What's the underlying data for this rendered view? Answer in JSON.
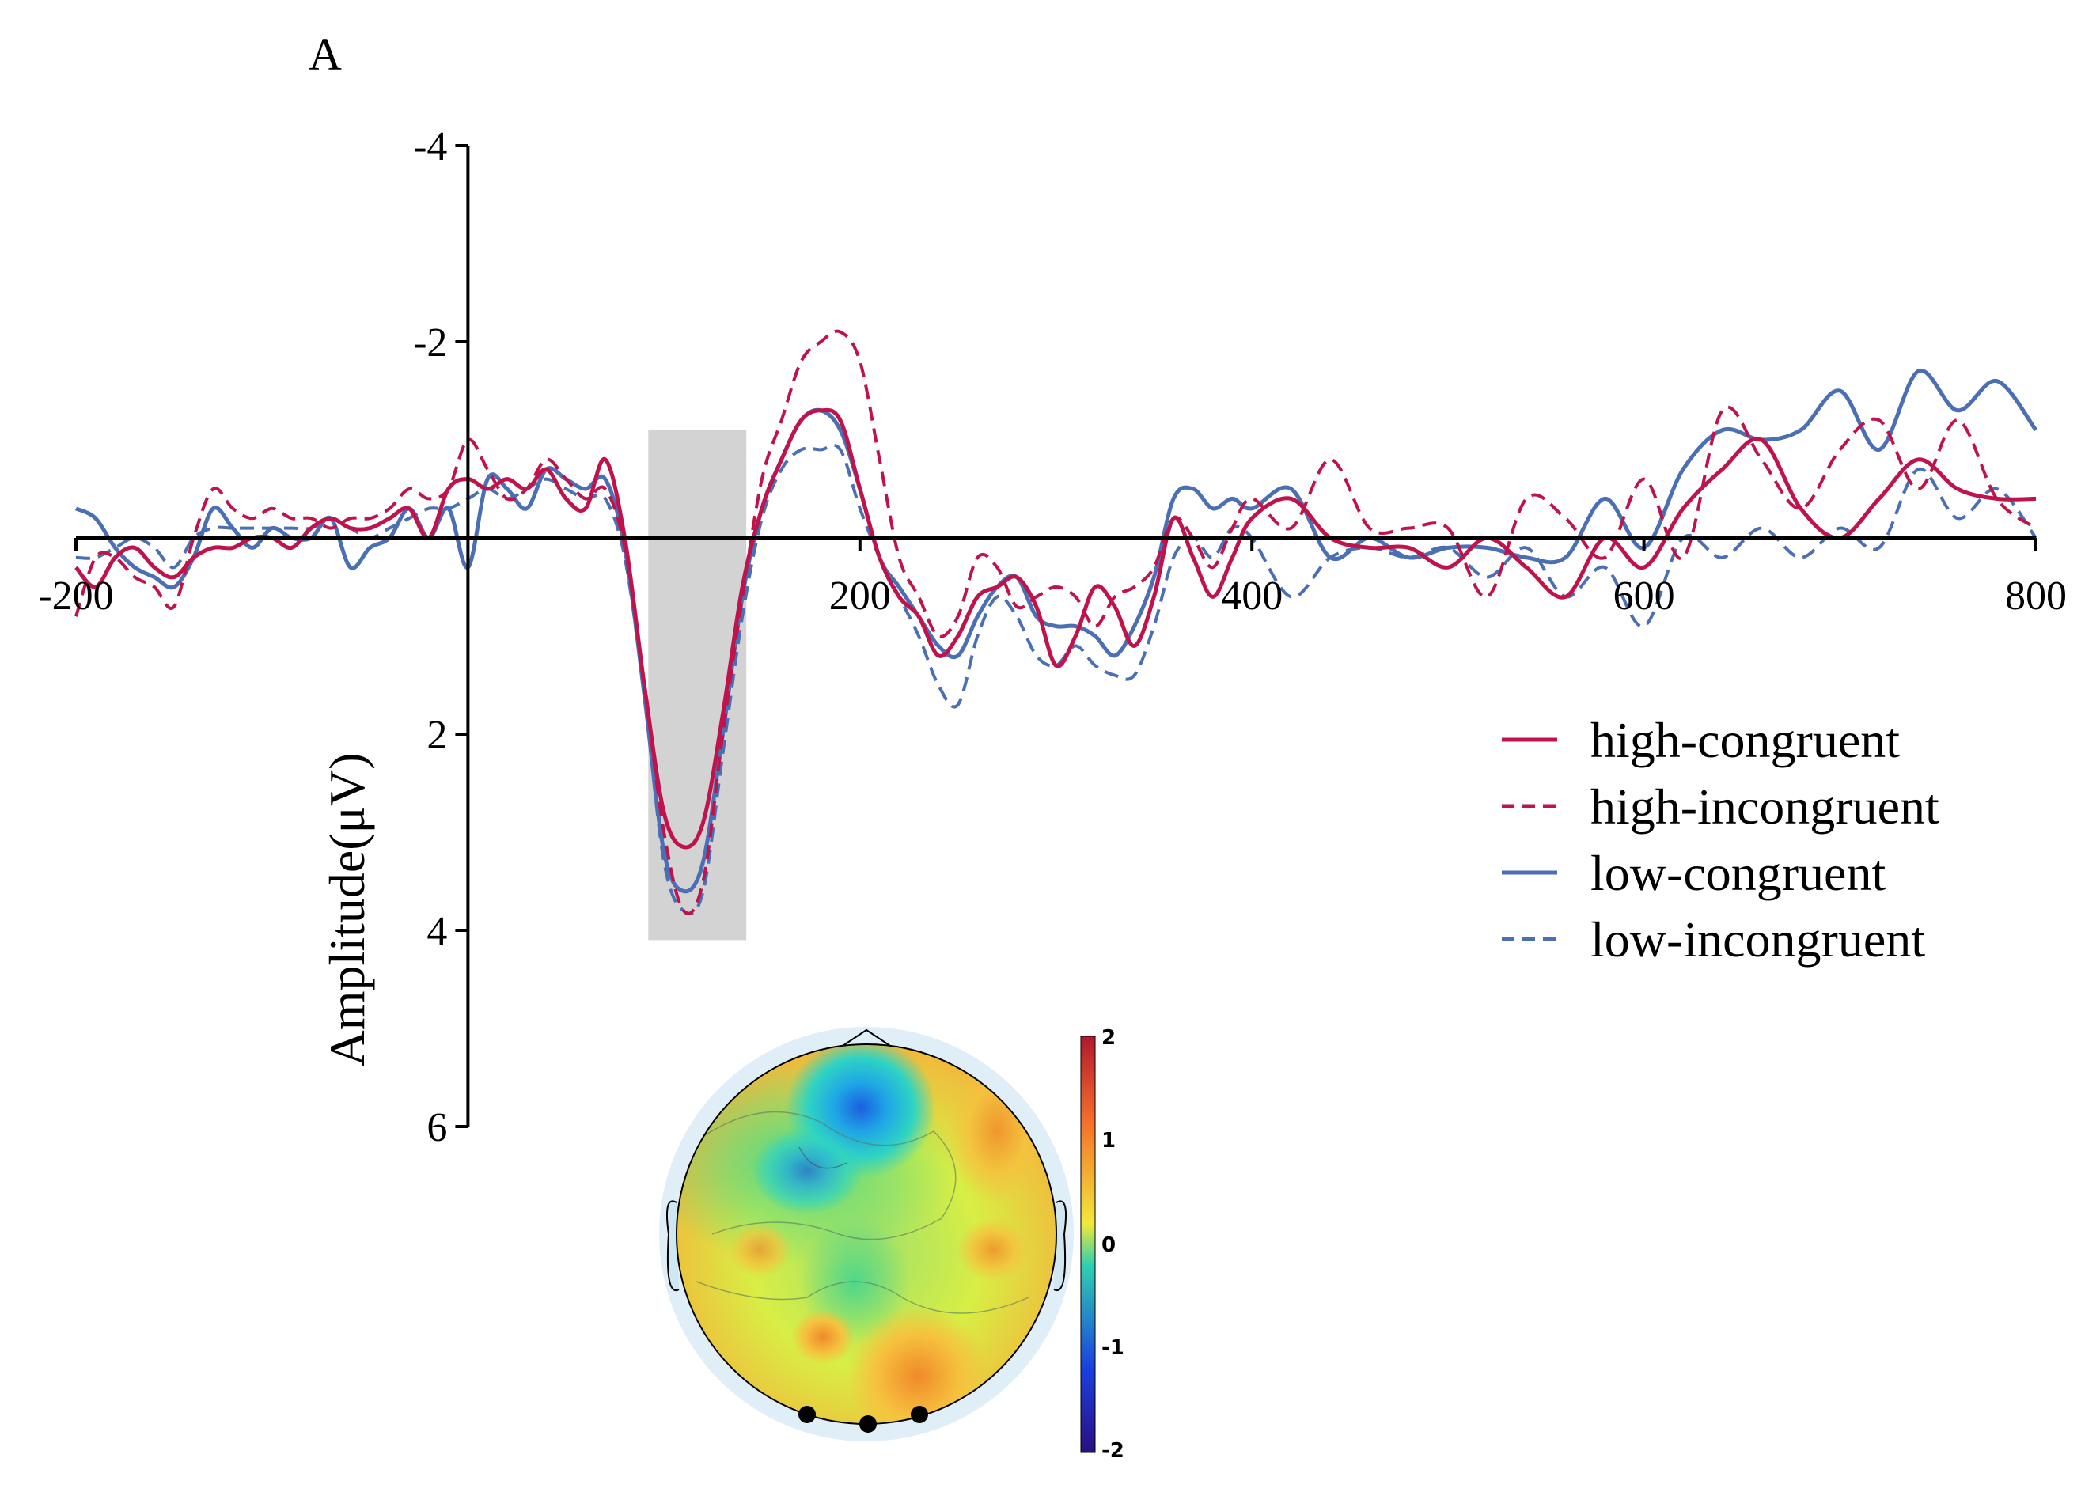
{
  "chart_data": {
    "type": "line",
    "panel_label": "A",
    "title": "",
    "xlabel": "",
    "ylabel": "Amplitude(μV)",
    "xlim": [
      -200,
      800
    ],
    "ylim": [
      -4,
      6
    ],
    "y_inverted": true,
    "grid": false,
    "x_ticks": [
      -200,
      200,
      400,
      600,
      800
    ],
    "y_ticks": [
      -4,
      -2,
      2,
      4,
      6
    ],
    "highlight_window": {
      "x_start": 92,
      "x_end": 142,
      "y_top": -1.1,
      "y_bottom": 4.1
    },
    "legend_position": "right",
    "series": [
      {
        "name": "high-congruent",
        "color": "#c0134b",
        "dash": "solid",
        "x": [
          -200,
          -190,
          -180,
          -170,
          -160,
          -150,
          -140,
          -130,
          -120,
          -110,
          -100,
          -90,
          -80,
          -70,
          -60,
          -50,
          -40,
          -30,
          -20,
          -10,
          0,
          10,
          20,
          30,
          40,
          50,
          60,
          70,
          80,
          90,
          100,
          110,
          120,
          130,
          140,
          150,
          160,
          170,
          180,
          190,
          200,
          210,
          220,
          230,
          240,
          250,
          260,
          270,
          280,
          290,
          300,
          310,
          320,
          330,
          340,
          350,
          360,
          370,
          380,
          390,
          400,
          420,
          440,
          460,
          480,
          500,
          520,
          540,
          560,
          580,
          600,
          620,
          640,
          660,
          680,
          700,
          720,
          740,
          760,
          780,
          800
        ],
        "y": [
          0.3,
          0.5,
          0.2,
          0.1,
          0.3,
          0.4,
          0.2,
          0.1,
          0.1,
          0.0,
          0.0,
          0.1,
          -0.1,
          -0.2,
          -0.1,
          -0.1,
          -0.2,
          -0.3,
          0.0,
          -0.5,
          -0.6,
          -0.5,
          -0.6,
          -0.5,
          -0.7,
          -0.4,
          -0.3,
          -0.8,
          0.0,
          1.5,
          2.8,
          3.15,
          2.9,
          1.8,
          0.5,
          -0.3,
          -0.8,
          -1.2,
          -1.3,
          -1.2,
          -0.5,
          0.2,
          0.6,
          0.8,
          1.2,
          1.0,
          0.6,
          0.5,
          0.4,
          0.7,
          1.3,
          1.0,
          0.5,
          0.7,
          1.1,
          0.6,
          -0.2,
          0.2,
          0.6,
          0.2,
          -0.2,
          -0.4,
          0.0,
          0.1,
          0.1,
          0.3,
          0.0,
          0.3,
          0.6,
          0.0,
          0.3,
          -0.3,
          -0.7,
          -1.0,
          -0.3,
          0.0,
          -0.4,
          -0.8,
          -0.5,
          -0.4,
          -0.4
        ]
      },
      {
        "name": "high-incongruent",
        "color": "#c0134b",
        "dash": "dashed",
        "x": [
          -200,
          -190,
          -180,
          -170,
          -160,
          -150,
          -140,
          -130,
          -120,
          -110,
          -100,
          -90,
          -80,
          -70,
          -60,
          -50,
          -40,
          -30,
          -20,
          -10,
          0,
          10,
          20,
          30,
          40,
          50,
          60,
          70,
          80,
          90,
          100,
          110,
          120,
          130,
          140,
          150,
          160,
          170,
          180,
          190,
          200,
          210,
          220,
          230,
          240,
          250,
          260,
          270,
          280,
          290,
          300,
          310,
          320,
          330,
          340,
          350,
          360,
          370,
          380,
          390,
          400,
          420,
          440,
          460,
          480,
          500,
          520,
          540,
          560,
          580,
          600,
          620,
          640,
          660,
          680,
          700,
          720,
          740,
          760,
          780,
          800
        ],
        "y": [
          0.8,
          0.2,
          0.2,
          0.4,
          0.5,
          0.7,
          0.0,
          -0.5,
          -0.3,
          -0.2,
          -0.3,
          -0.2,
          -0.2,
          -0.1,
          -0.2,
          -0.2,
          -0.3,
          -0.5,
          -0.4,
          -0.5,
          -1.0,
          -0.7,
          -0.4,
          -0.5,
          -0.8,
          -0.6,
          -0.4,
          -0.5,
          0.1,
          1.5,
          3.0,
          3.8,
          3.5,
          2.0,
          0.6,
          -0.6,
          -1.2,
          -1.8,
          -2.0,
          -2.1,
          -1.8,
          -0.8,
          0.2,
          0.6,
          1.0,
          0.8,
          0.2,
          0.3,
          0.7,
          0.6,
          0.5,
          0.6,
          0.9,
          0.6,
          0.5,
          0.3,
          -0.2,
          0.0,
          0.3,
          -0.1,
          -0.4,
          -0.1,
          -0.8,
          -0.1,
          -0.1,
          -0.1,
          0.6,
          -0.4,
          -0.2,
          0.2,
          -0.6,
          0.2,
          -1.3,
          -0.8,
          -0.3,
          -0.9,
          -1.2,
          -0.5,
          -1.2,
          -0.4,
          -0.1
        ]
      },
      {
        "name": "low-congruent",
        "color": "#4a6fb5",
        "dash": "solid",
        "x": [
          -200,
          -190,
          -180,
          -170,
          -160,
          -150,
          -140,
          -130,
          -120,
          -110,
          -100,
          -90,
          -80,
          -70,
          -60,
          -50,
          -40,
          -30,
          -20,
          -10,
          0,
          10,
          20,
          30,
          40,
          50,
          60,
          70,
          80,
          90,
          100,
          110,
          120,
          130,
          140,
          150,
          160,
          170,
          180,
          190,
          200,
          210,
          220,
          230,
          240,
          250,
          260,
          270,
          280,
          290,
          300,
          310,
          320,
          330,
          340,
          350,
          360,
          370,
          380,
          390,
          400,
          420,
          440,
          460,
          480,
          500,
          520,
          540,
          560,
          580,
          600,
          620,
          640,
          660,
          680,
          700,
          720,
          740,
          760,
          780,
          800
        ],
        "y": [
          -0.3,
          -0.2,
          0.1,
          0.3,
          0.4,
          0.5,
          0.2,
          -0.3,
          -0.1,
          0.1,
          -0.1,
          0.0,
          0.0,
          -0.2,
          0.3,
          0.1,
          0.0,
          -0.3,
          0.0,
          -0.3,
          0.3,
          -0.6,
          -0.5,
          -0.3,
          -0.7,
          -0.6,
          -0.5,
          -0.6,
          0.1,
          1.6,
          3.2,
          3.6,
          3.3,
          2.0,
          0.6,
          -0.3,
          -0.8,
          -1.2,
          -1.3,
          -1.1,
          -0.5,
          0.2,
          0.5,
          0.8,
          1.1,
          1.2,
          0.8,
          0.5,
          0.4,
          0.8,
          0.9,
          0.9,
          1.0,
          1.2,
          0.9,
          0.4,
          -0.4,
          -0.5,
          -0.3,
          -0.4,
          -0.3,
          -0.5,
          0.2,
          0.0,
          0.2,
          0.1,
          0.1,
          0.2,
          0.2,
          -0.4,
          0.1,
          -0.7,
          -1.1,
          -1.0,
          -1.1,
          -1.5,
          -0.9,
          -1.7,
          -1.3,
          -1.6,
          -1.1
        ]
      },
      {
        "name": "low-incongruent",
        "color": "#4a6fb5",
        "dash": "dashed",
        "x": [
          -200,
          -190,
          -180,
          -170,
          -160,
          -150,
          -140,
          -130,
          -120,
          -110,
          -100,
          -90,
          -80,
          -70,
          -60,
          -50,
          -40,
          -30,
          -20,
          -10,
          0,
          10,
          20,
          30,
          40,
          50,
          60,
          70,
          80,
          90,
          100,
          110,
          120,
          130,
          140,
          150,
          160,
          170,
          180,
          190,
          200,
          210,
          220,
          230,
          240,
          250,
          260,
          270,
          280,
          290,
          300,
          310,
          320,
          330,
          340,
          350,
          360,
          370,
          380,
          390,
          400,
          420,
          440,
          460,
          480,
          500,
          520,
          540,
          560,
          580,
          600,
          620,
          640,
          660,
          680,
          700,
          720,
          740,
          760,
          780,
          800
        ],
        "y": [
          0.2,
          0.2,
          0.1,
          0.0,
          0.1,
          0.3,
          0.0,
          -0.1,
          -0.1,
          -0.1,
          -0.1,
          -0.1,
          -0.1,
          -0.2,
          -0.1,
          0.0,
          -0.1,
          -0.2,
          -0.3,
          -0.3,
          -0.4,
          -0.5,
          -0.4,
          -0.5,
          -0.6,
          -0.5,
          -0.4,
          -0.4,
          0.2,
          1.6,
          3.3,
          3.8,
          3.6,
          2.2,
          0.8,
          -0.2,
          -0.7,
          -0.9,
          -0.9,
          -0.9,
          -0.3,
          0.2,
          0.6,
          1.0,
          1.5,
          1.7,
          1.0,
          0.6,
          0.8,
          1.2,
          1.3,
          1.1,
          1.3,
          1.4,
          1.4,
          0.9,
          0.2,
          0.0,
          0.2,
          -0.1,
          0.0,
          0.6,
          0.2,
          0.1,
          0.2,
          0.1,
          0.4,
          0.1,
          0.6,
          0.3,
          0.9,
          0.0,
          0.2,
          -0.1,
          0.2,
          -0.1,
          0.1,
          -0.7,
          -0.2,
          -0.5,
          0.0
        ]
      }
    ]
  },
  "topomap": {
    "colorbar_ticks": [
      "2",
      "1",
      "0",
      "-1",
      "-2"
    ],
    "colorbar_colors": [
      "#b2182b",
      "#f46d2b",
      "#f2e83a",
      "#2fd0b0",
      "#1a3fe0",
      "#2a0f80"
    ],
    "electrodes_highlighted": 3
  }
}
